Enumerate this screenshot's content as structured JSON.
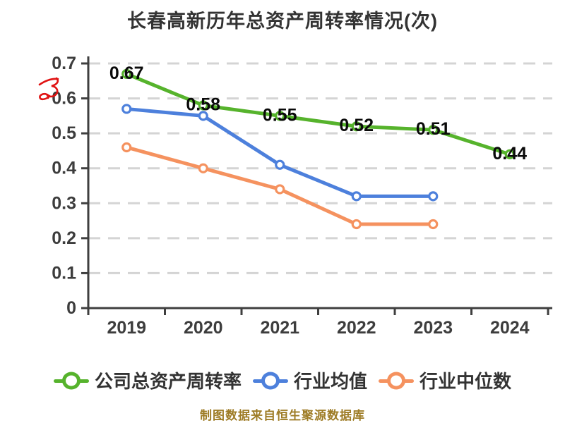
{
  "title": "长春高新历年总资产周转率情况(次)",
  "footer_note": "制图数据来自恒生聚源数据库",
  "colors": {
    "background": "#ffffff",
    "title_text": "#333333",
    "axis": "#3f3f3f",
    "tick_text": "#3d3d3d",
    "grid": "#d4d4d4",
    "value_label_text": "#0a0a0a",
    "legend_text": "#333333",
    "footer_text": "#9e7c26",
    "scribble": "#e01212"
  },
  "chart_data": {
    "type": "line",
    "title": "长春高新历年总资产周转率情况(次)",
    "categories": [
      "2019",
      "2020",
      "2021",
      "2022",
      "2023",
      "2024"
    ],
    "series": [
      {
        "name": "公司总资产周转率",
        "color": "#56b32c",
        "values": [
          0.67,
          0.58,
          0.55,
          0.52,
          0.51,
          0.44
        ],
        "labels": [
          "0.67",
          "0.58",
          "0.55",
          "0.52",
          "0.51",
          "0.44"
        ]
      },
      {
        "name": "行业均值",
        "color": "#4d80dc",
        "values": [
          0.57,
          0.55,
          0.41,
          0.32,
          0.32,
          null
        ]
      },
      {
        "name": "行业中位数",
        "color": "#f5925f",
        "values": [
          0.46,
          0.4,
          0.34,
          0.24,
          0.24,
          null
        ]
      }
    ],
    "xlabel": "",
    "ylabel": "",
    "ylim": [
      0,
      0.7
    ],
    "ytick_step": 0.1,
    "ytick_labels": [
      "0",
      "0.1",
      "0.2",
      "0.3",
      "0.4",
      "0.5",
      "0.6",
      "0.7"
    ],
    "grid": "horizontal-dashed",
    "legend_position": "bottom",
    "value_labels_series": 0,
    "marker": "circle-white-fill"
  }
}
